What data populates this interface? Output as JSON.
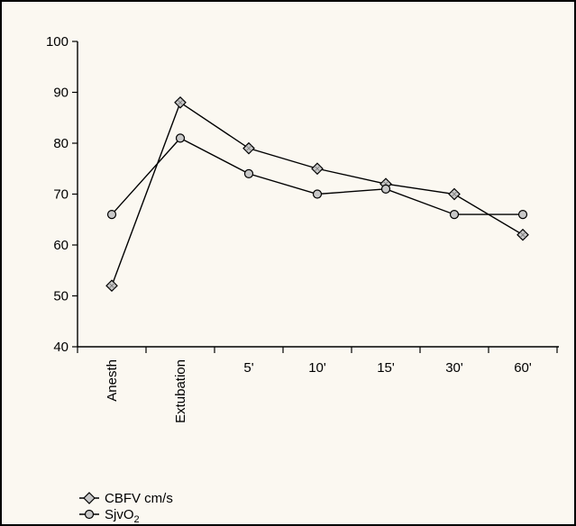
{
  "chart_data": {
    "type": "line",
    "title": "",
    "xlabel": "",
    "ylabel": "",
    "categories": [
      "Anesth",
      "Extubation",
      "5'",
      "10'",
      "15'",
      "30'",
      "60'"
    ],
    "ylim": [
      40,
      100
    ],
    "yticks": [
      40,
      50,
      60,
      70,
      80,
      90,
      100
    ],
    "grid": false,
    "legend_position": "bottom-left",
    "series": [
      {
        "name": "CBFV cm/s",
        "marker": "diamond",
        "values": [
          52,
          88,
          79,
          75,
          72,
          70,
          62
        ]
      },
      {
        "name": "SjvO2",
        "marker": "circle",
        "values": [
          66,
          81,
          74,
          70,
          71,
          66,
          66
        ]
      }
    ]
  },
  "colors": {
    "frame": "#000000",
    "background": "#fbf8f1",
    "line": "#000000",
    "marker_fill": "#c8c8c8"
  }
}
